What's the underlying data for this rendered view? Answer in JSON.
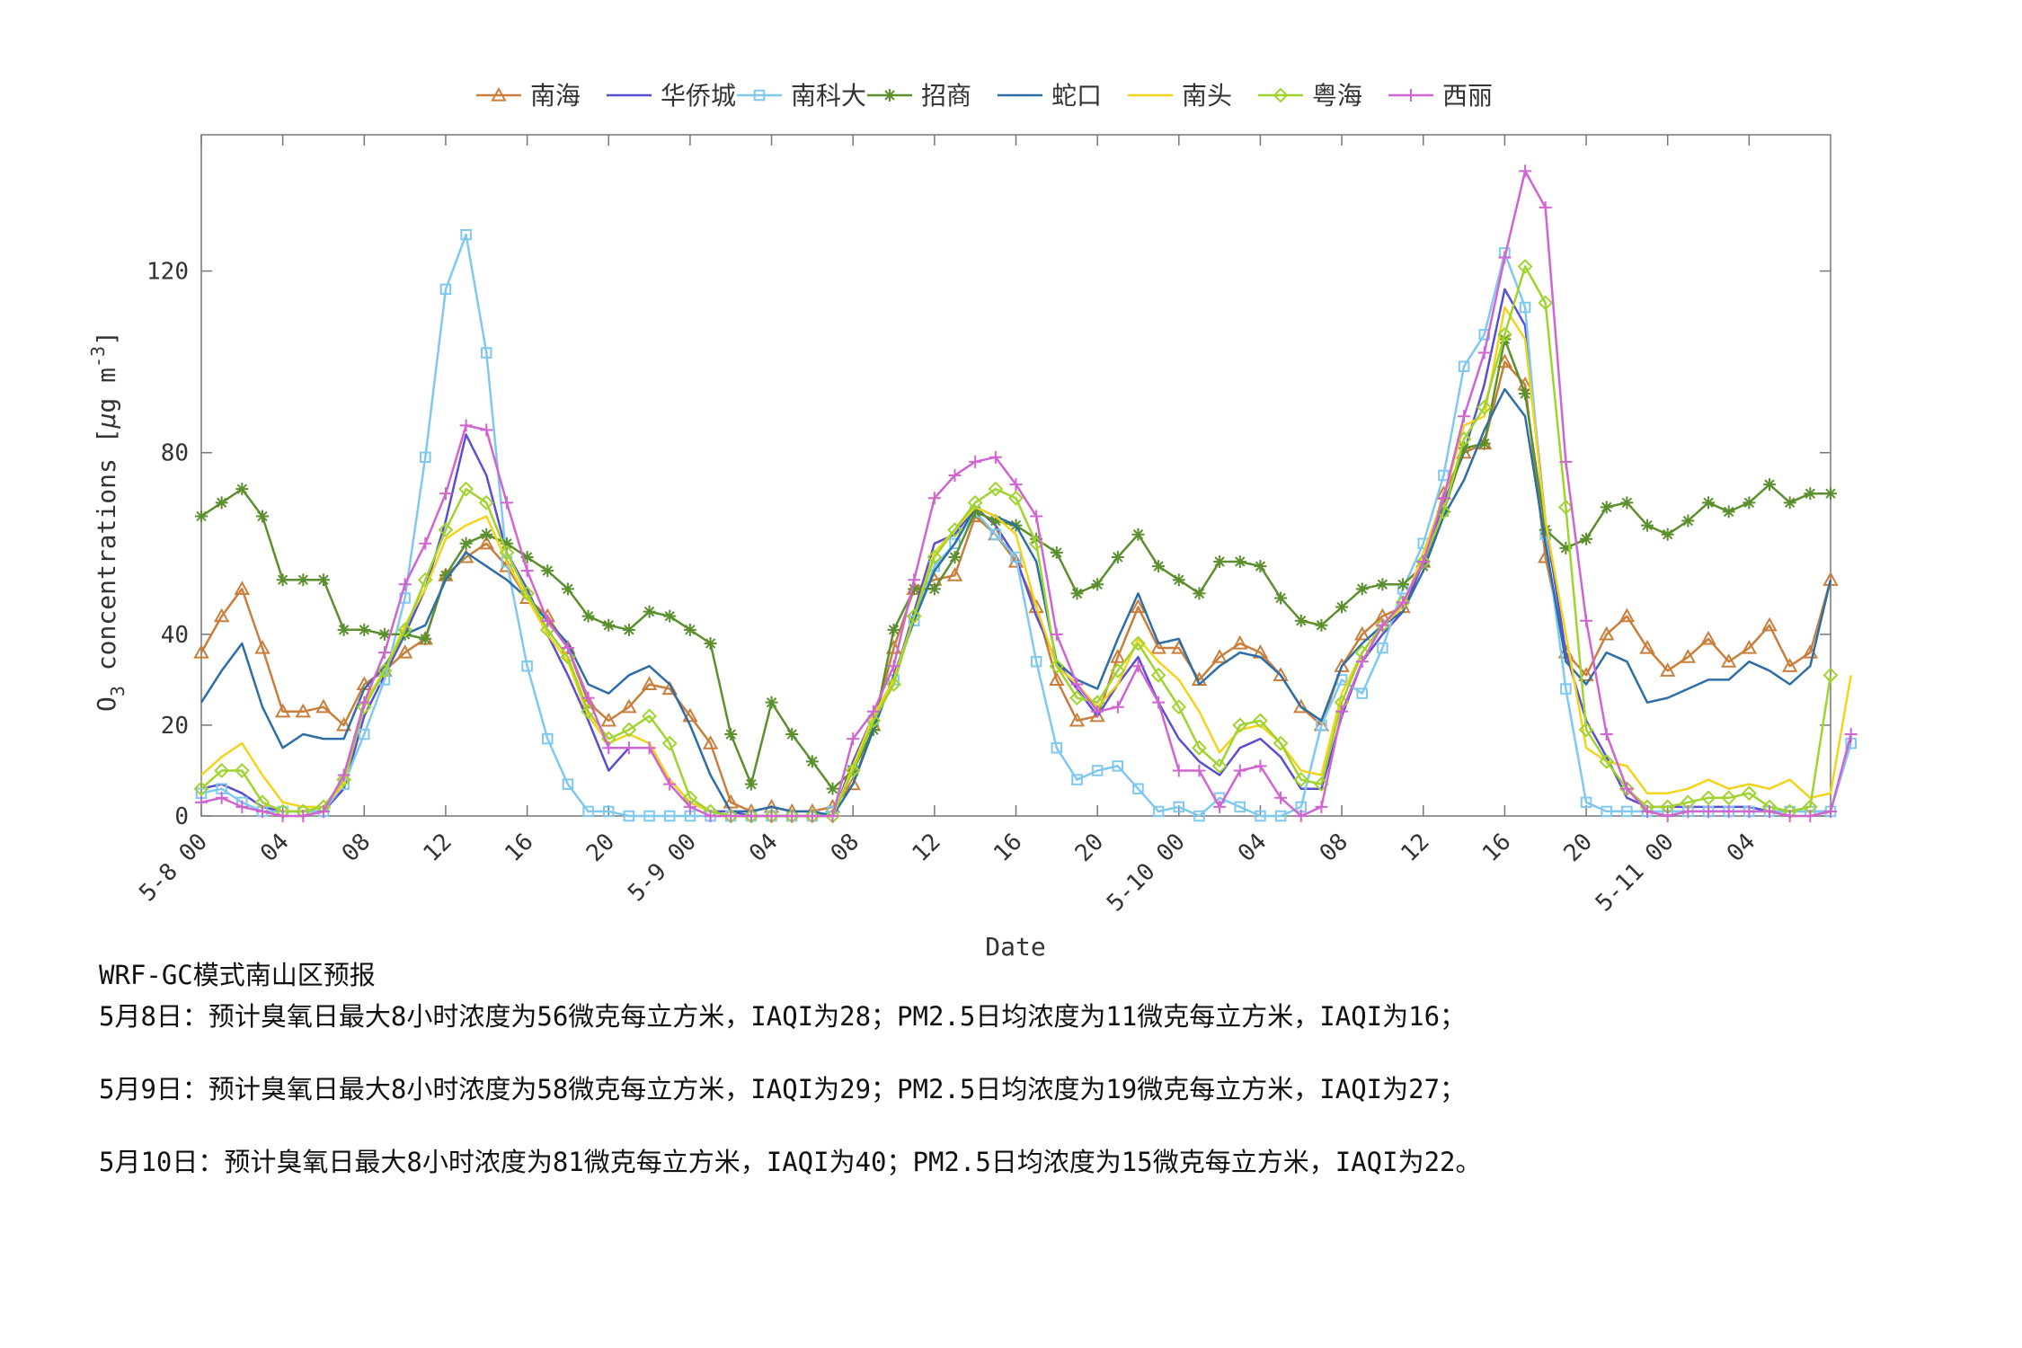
{
  "chart_data": {
    "type": "line",
    "title": "",
    "xlabel": "Date",
    "ylabel": "O3 concentrations [μg m-3]",
    "ylim": [
      0,
      150
    ],
    "yticks": [
      0,
      20,
      40,
      80,
      120
    ],
    "x_start": "5-8 00",
    "x_step_hours": 1,
    "x_tick_labels": [
      "5-8 00",
      "04",
      "08",
      "12",
      "16",
      "20",
      "5-9 00",
      "04",
      "08",
      "12",
      "16",
      "20",
      "5-10 00",
      "04",
      "08",
      "12",
      "16",
      "20",
      "5-11 00",
      "04"
    ],
    "grid": false,
    "legend_position": "top",
    "series": [
      {
        "name": "南海",
        "color": "#c87f3c",
        "marker": "triangle",
        "values": [
          36,
          44,
          50,
          37,
          23,
          23,
          24,
          20,
          29,
          32,
          36,
          39,
          53,
          57,
          60,
          55,
          48,
          44,
          37,
          25,
          21,
          24,
          29,
          28,
          22,
          16,
          3,
          1,
          2,
          1,
          1,
          2,
          7,
          20,
          37,
          50,
          52,
          53,
          66,
          62,
          56,
          46,
          30,
          21,
          22,
          35,
          46,
          37,
          37,
          30,
          35,
          38,
          36,
          31,
          24,
          20,
          33,
          40,
          44,
          46,
          56,
          71,
          80,
          82,
          100,
          95,
          57,
          36,
          31,
          40,
          44,
          37,
          32,
          35,
          39,
          34,
          37,
          42,
          33,
          36,
          52
        ]
      },
      {
        "name": "华侨城",
        "color": "#5a4fcf",
        "marker": "none",
        "values": [
          6,
          7,
          5,
          2,
          1,
          1,
          1,
          6,
          22,
          31,
          40,
          50,
          65,
          84,
          75,
          58,
          50,
          40,
          31,
          21,
          10,
          15,
          15,
          8,
          3,
          1,
          1,
          0,
          0,
          0,
          0,
          0,
          12,
          22,
          30,
          45,
          60,
          62,
          68,
          64,
          57,
          44,
          34,
          28,
          22,
          29,
          35,
          25,
          17,
          12,
          9,
          15,
          17,
          13,
          6,
          6,
          22,
          34,
          40,
          45,
          56,
          69,
          80,
          95,
          116,
          108,
          65,
          36,
          21,
          13,
          4,
          2,
          2,
          2,
          2,
          2,
          2,
          1,
          1,
          1,
          1,
          17
        ]
      },
      {
        "name": "南科大",
        "color": "#7fc8ef",
        "marker": "square",
        "values": [
          5,
          6,
          3,
          1,
          1,
          1,
          1,
          7,
          18,
          30,
          48,
          79,
          116,
          128,
          102,
          56,
          33,
          17,
          7,
          1,
          1,
          0,
          0,
          0,
          0,
          0,
          0,
          0,
          0,
          0,
          0,
          1,
          10,
          21,
          30,
          43,
          55,
          60,
          67,
          62,
          57,
          34,
          15,
          8,
          10,
          11,
          6,
          1,
          2,
          0,
          4,
          2,
          0,
          0,
          2,
          20,
          30,
          27,
          37,
          50,
          60,
          75,
          99,
          106,
          124,
          112,
          62,
          28,
          3,
          1,
          1,
          1,
          1,
          1,
          1,
          1,
          1,
          1,
          1,
          1,
          1,
          16
        ]
      },
      {
        "name": "招商",
        "color": "#5c8f2e",
        "marker": "star",
        "values": [
          66,
          69,
          72,
          66,
          52,
          52,
          52,
          41,
          41,
          40,
          40,
          39,
          53,
          60,
          62,
          60,
          57,
          54,
          50,
          44,
          42,
          41,
          45,
          44,
          41,
          38,
          18,
          7,
          25,
          18,
          12,
          6,
          10,
          19,
          41,
          50,
          50,
          57,
          67,
          65,
          64,
          61,
          58,
          49,
          51,
          57,
          62,
          55,
          52,
          49,
          56,
          56,
          55,
          48,
          43,
          42,
          46,
          50,
          51,
          51,
          55,
          67,
          81,
          82,
          105,
          93,
          63,
          59,
          61,
          68,
          69,
          64,
          62,
          65,
          69,
          67,
          69,
          73,
          69,
          71,
          71
        ]
      },
      {
        "name": "蛇口",
        "color": "#2e6ea6",
        "marker": "none",
        "values": [
          25,
          32,
          38,
          24,
          15,
          18,
          17,
          17,
          28,
          33,
          40,
          42,
          52,
          58,
          55,
          52,
          48,
          43,
          38,
          29,
          27,
          31,
          33,
          29,
          20,
          9,
          1,
          1,
          2,
          1,
          1,
          0,
          7,
          19,
          31,
          43,
          54,
          60,
          68,
          66,
          64,
          56,
          34,
          30,
          28,
          39,
          49,
          38,
          39,
          29,
          33,
          36,
          35,
          31,
          24,
          21,
          33,
          38,
          42,
          45,
          54,
          66,
          74,
          85,
          94,
          88,
          60,
          34,
          29,
          36,
          34,
          25,
          26,
          28,
          30,
          30,
          34,
          32,
          29,
          33,
          52
        ]
      },
      {
        "name": "南头",
        "color": "#f2d41c",
        "marker": "none",
        "values": [
          9,
          13,
          16,
          9,
          3,
          2,
          2,
          7,
          25,
          32,
          42,
          50,
          61,
          64,
          66,
          56,
          48,
          40,
          34,
          22,
          16,
          18,
          16,
          8,
          3,
          1,
          0,
          0,
          0,
          0,
          0,
          0,
          11,
          22,
          30,
          44,
          58,
          63,
          68,
          66,
          62,
          46,
          33,
          29,
          24,
          29,
          39,
          34,
          30,
          23,
          14,
          19,
          20,
          16,
          10,
          9,
          27,
          36,
          42,
          46,
          58,
          70,
          86,
          88,
          112,
          105,
          65,
          40,
          15,
          12,
          11,
          5,
          5,
          6,
          8,
          6,
          7,
          6,
          8,
          4,
          5,
          31
        ]
      },
      {
        "name": "粤海",
        "color": "#9fd42f",
        "marker": "diamond",
        "values": [
          6,
          10,
          10,
          3,
          1,
          1,
          2,
          8,
          24,
          32,
          41,
          52,
          63,
          72,
          69,
          58,
          49,
          41,
          35,
          23,
          17,
          19,
          22,
          16,
          4,
          1,
          0,
          0,
          0,
          0,
          0,
          0,
          10,
          21,
          29,
          44,
          57,
          63,
          69,
          72,
          70,
          60,
          33,
          26,
          25,
          32,
          38,
          31,
          24,
          15,
          11,
          20,
          21,
          16,
          8,
          7,
          25,
          36,
          42,
          47,
          56,
          67,
          83,
          90,
          106,
          121,
          113,
          68,
          19,
          12,
          6,
          2,
          2,
          3,
          4,
          4,
          5,
          2,
          1,
          2,
          31
        ]
      },
      {
        "name": "西丽",
        "color": "#d064d0",
        "marker": "plus",
        "values": [
          3,
          4,
          2,
          1,
          0,
          0,
          1,
          9,
          25,
          36,
          51,
          60,
          71,
          86,
          85,
          69,
          54,
          43,
          37,
          26,
          15,
          15,
          15,
          7,
          2,
          0,
          0,
          0,
          0,
          0,
          0,
          0,
          17,
          23,
          33,
          52,
          70,
          75,
          78,
          79,
          73,
          66,
          40,
          29,
          23,
          24,
          33,
          25,
          10,
          10,
          2,
          10,
          11,
          4,
          0,
          2,
          23,
          34,
          42,
          47,
          56,
          70,
          88,
          102,
          123,
          142,
          134,
          78,
          43,
          18,
          6,
          1,
          0,
          1,
          1,
          1,
          1,
          1,
          0,
          0,
          1,
          18
        ]
      }
    ]
  },
  "forecast": {
    "title": "WRF-GC模式南山区预报",
    "day1": "5月8日：预计臭氧日最大8小时浓度为56微克每立方米，IAQI为28；PM2.5日均浓度为11微克每立方米，IAQI为16；",
    "day2": "5月9日：预计臭氧日最大8小时浓度为58微克每立方米，IAQI为29；PM2.5日均浓度为19微克每立方米，IAQI为27；",
    "day3": "5月10日：预计臭氧日最大8小时浓度为81微克每立方米，IAQI为40；PM2.5日均浓度为15微克每立方米，IAQI为22。"
  }
}
